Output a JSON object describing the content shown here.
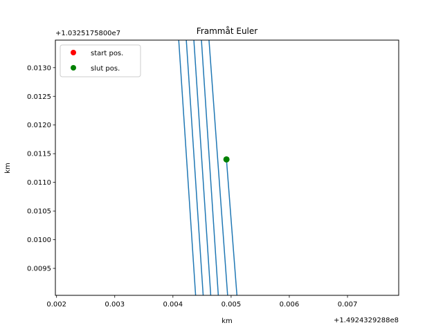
{
  "chart_data": {
    "type": "line",
    "title": "Frammåt Euler",
    "xlabel": "km",
    "ylabel": "km",
    "x_offset_label": "+1.4924329288e8",
    "y_offset_label": "+1.0325175800e7",
    "xlim": [
      0.00198,
      0.00788
    ],
    "ylim": [
      0.00903,
      0.01348
    ],
    "x_ticks": [
      0.002,
      0.003,
      0.004,
      0.005,
      0.006,
      0.007
    ],
    "x_tick_labels": [
      "0.002",
      "0.003",
      "0.004",
      "0.005",
      "0.006",
      "0.007"
    ],
    "y_ticks": [
      0.0095,
      0.01,
      0.0105,
      0.011,
      0.0115,
      0.012,
      0.0125,
      0.013
    ],
    "y_tick_labels": [
      "0.0095",
      "0.0100",
      "0.0105",
      "0.0110",
      "0.0115",
      "0.0120",
      "0.0125",
      "0.0130"
    ],
    "grid": false,
    "legend_position": "top-left",
    "line_color": "#1f77b4",
    "trajectory": [
      {
        "x": [
          0.0041,
          0.00439
        ],
        "y": [
          0.01348,
          0.00903
        ]
      },
      {
        "x": [
          0.00423,
          0.00452
        ],
        "y": [
          0.01348,
          0.00903
        ]
      },
      {
        "x": [
          0.00436,
          0.00465
        ],
        "y": [
          0.01348,
          0.00903
        ]
      },
      {
        "x": [
          0.00449,
          0.00478
        ],
        "y": [
          0.01348,
          0.00903
        ]
      },
      {
        "x": [
          0.00462,
          0.00494
        ],
        "y": [
          0.01348,
          0.00903
        ]
      },
      {
        "x": [
          0.00492,
          0.0051
        ],
        "y": [
          0.0114,
          0.00903
        ]
      }
    ],
    "points": [
      {
        "name": "start pos.",
        "color": "#ff0000",
        "x": 0.00492,
        "y": 0.0114,
        "visible": false
      },
      {
        "name": "slut pos.",
        "color": "#008000",
        "x": 0.00492,
        "y": 0.0114,
        "visible": true
      }
    ]
  }
}
